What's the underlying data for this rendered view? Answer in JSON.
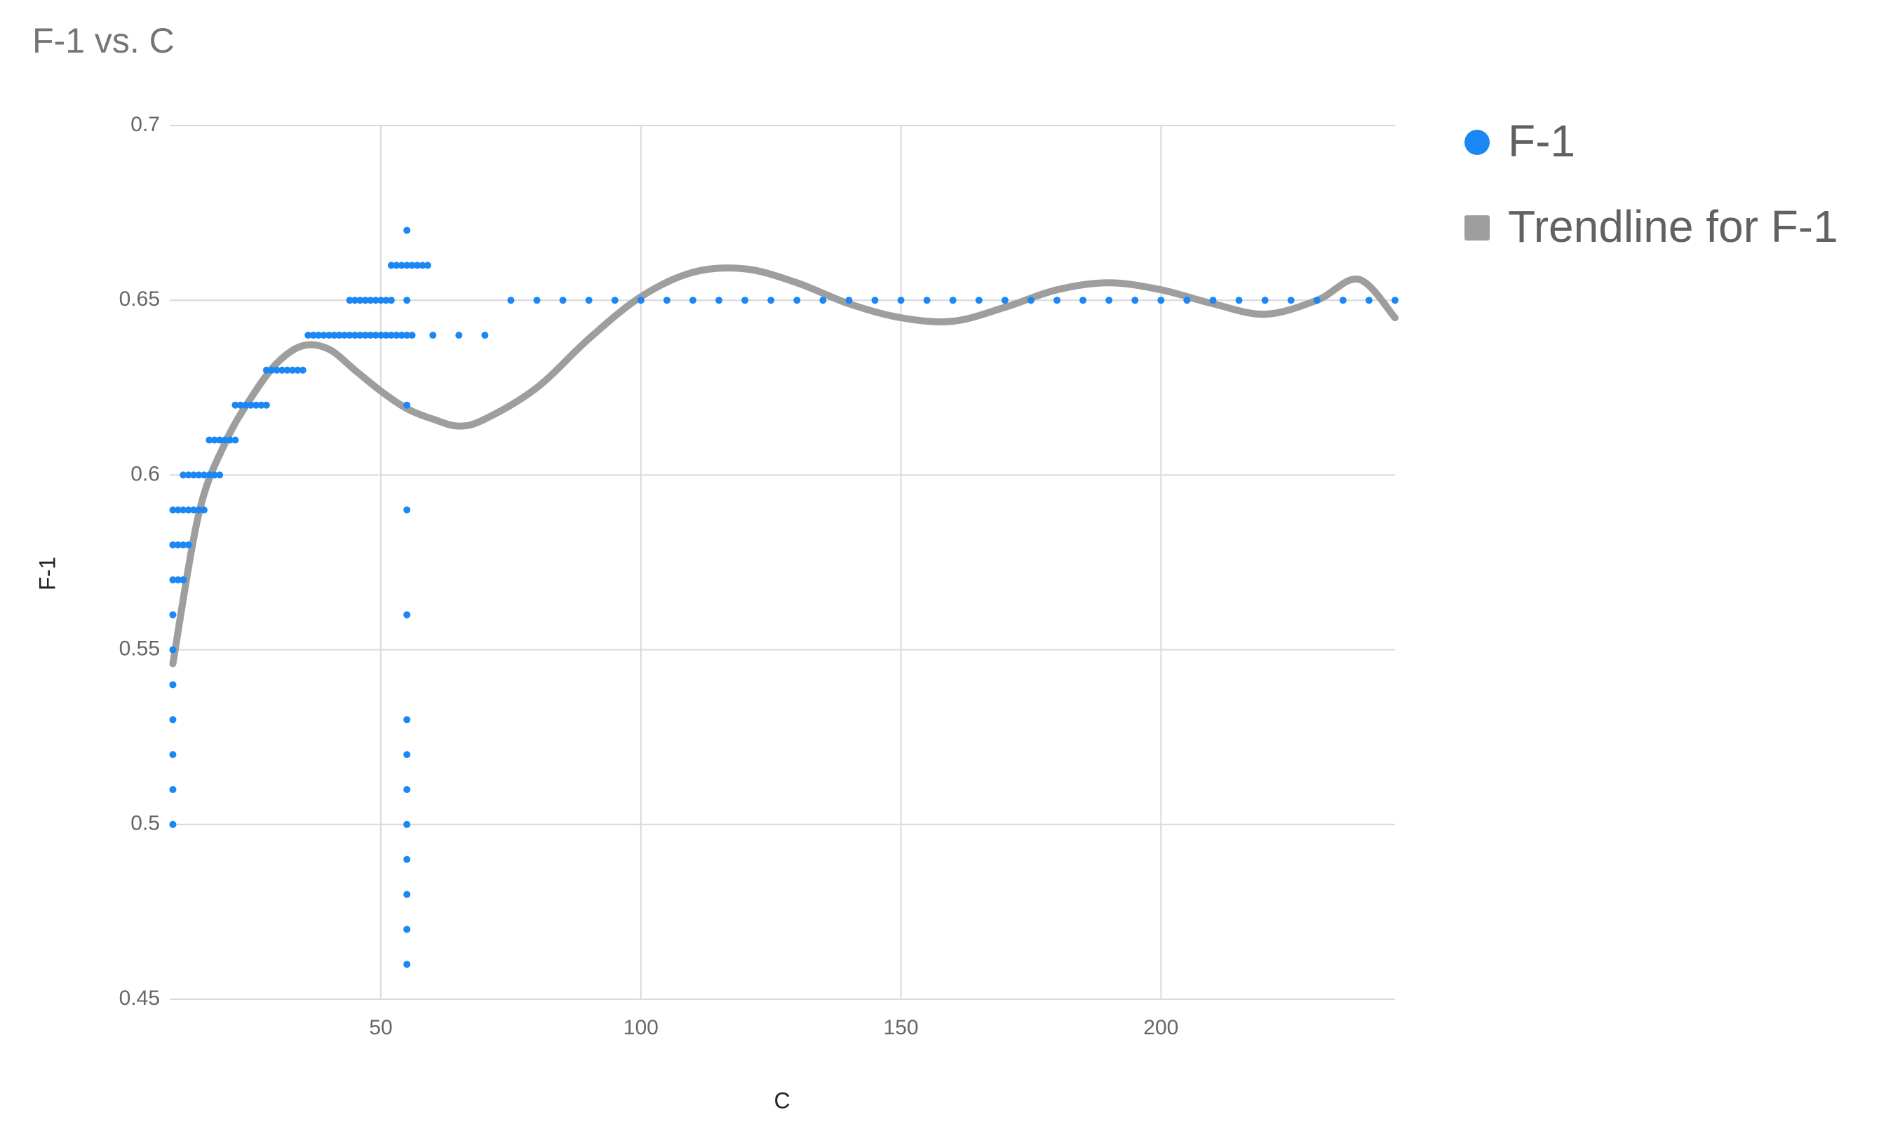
{
  "chart_data": {
    "type": "scatter",
    "title": "F-1 vs. C",
    "xlabel": "C",
    "ylabel": "F-1",
    "xlim": [
      9.4,
      245
    ],
    "ylim": [
      0.45,
      0.7
    ],
    "xticks": [
      50,
      100,
      150,
      200
    ],
    "yticks": [
      0.45,
      0.5,
      0.55,
      0.6,
      0.65,
      0.7
    ],
    "grid": true,
    "legend": "right",
    "series": [
      {
        "name": "F-1",
        "color": "#1a87f5",
        "x": [
          10,
          10,
          10,
          10,
          10,
          10,
          10,
          10,
          10,
          10,
          11,
          12,
          11,
          12,
          13,
          11,
          12,
          13,
          14,
          15,
          16,
          12,
          13,
          14,
          15,
          16,
          17,
          18,
          19,
          17,
          18,
          19,
          20,
          21,
          22,
          22,
          23,
          24,
          25,
          26,
          27,
          28,
          28,
          29,
          30,
          31,
          32,
          33,
          34,
          35,
          36,
          37,
          38,
          39,
          40,
          41,
          42,
          43,
          44,
          45,
          46,
          47,
          48,
          49,
          50,
          51,
          52,
          53,
          54,
          55,
          56,
          60,
          65,
          70,
          44,
          45,
          46,
          47,
          48,
          49,
          50,
          51,
          52,
          55,
          75,
          80,
          85,
          90,
          95,
          100,
          105,
          110,
          115,
          120,
          125,
          130,
          135,
          140,
          145,
          150,
          155,
          160,
          165,
          170,
          175,
          180,
          185,
          190,
          195,
          200,
          205,
          210,
          215,
          220,
          225,
          230,
          235,
          240,
          245,
          52,
          53,
          54,
          55,
          56,
          57,
          58,
          59,
          55,
          55,
          55,
          55,
          55,
          55,
          55,
          55,
          55,
          55,
          55,
          55
        ],
        "values": [
          0.5,
          0.51,
          0.52,
          0.53,
          0.54,
          0.55,
          0.56,
          0.57,
          0.58,
          0.59,
          0.57,
          0.57,
          0.58,
          0.58,
          0.58,
          0.59,
          0.59,
          0.59,
          0.59,
          0.59,
          0.59,
          0.6,
          0.6,
          0.6,
          0.6,
          0.6,
          0.6,
          0.6,
          0.6,
          0.61,
          0.61,
          0.61,
          0.61,
          0.61,
          0.61,
          0.62,
          0.62,
          0.62,
          0.62,
          0.62,
          0.62,
          0.62,
          0.63,
          0.63,
          0.63,
          0.63,
          0.63,
          0.63,
          0.63,
          0.63,
          0.64,
          0.64,
          0.64,
          0.64,
          0.64,
          0.64,
          0.64,
          0.64,
          0.64,
          0.64,
          0.64,
          0.64,
          0.64,
          0.64,
          0.64,
          0.64,
          0.64,
          0.64,
          0.64,
          0.64,
          0.64,
          0.64,
          0.64,
          0.64,
          0.65,
          0.65,
          0.65,
          0.65,
          0.65,
          0.65,
          0.65,
          0.65,
          0.65,
          0.65,
          0.65,
          0.65,
          0.65,
          0.65,
          0.65,
          0.65,
          0.65,
          0.65,
          0.65,
          0.65,
          0.65,
          0.65,
          0.65,
          0.65,
          0.65,
          0.65,
          0.65,
          0.65,
          0.65,
          0.65,
          0.65,
          0.65,
          0.65,
          0.65,
          0.65,
          0.65,
          0.65,
          0.65,
          0.65,
          0.65,
          0.65,
          0.65,
          0.65,
          0.65,
          0.65,
          0.66,
          0.66,
          0.66,
          0.66,
          0.66,
          0.66,
          0.66,
          0.66,
          0.67,
          0.46,
          0.47,
          0.48,
          0.49,
          0.5,
          0.51,
          0.52,
          0.53,
          0.56,
          0.59,
          0.62
        ]
      },
      {
        "name": "Trendline for F-1",
        "color": "#9e9e9e",
        "trendline": true,
        "x": [
          10,
          15,
          20,
          25,
          30,
          35,
          40,
          45,
          50,
          55,
          60,
          65,
          70,
          80,
          90,
          100,
          110,
          120,
          130,
          140,
          150,
          160,
          170,
          180,
          190,
          200,
          210,
          220,
          230,
          238,
          245
        ],
        "values": [
          0.546,
          0.589,
          0.609,
          0.622,
          0.632,
          0.637,
          0.636,
          0.63,
          0.624,
          0.619,
          0.616,
          0.614,
          0.616,
          0.625,
          0.639,
          0.651,
          0.658,
          0.659,
          0.655,
          0.649,
          0.645,
          0.644,
          0.648,
          0.653,
          0.655,
          0.653,
          0.649,
          0.646,
          0.65,
          0.656,
          0.645
        ]
      }
    ]
  }
}
